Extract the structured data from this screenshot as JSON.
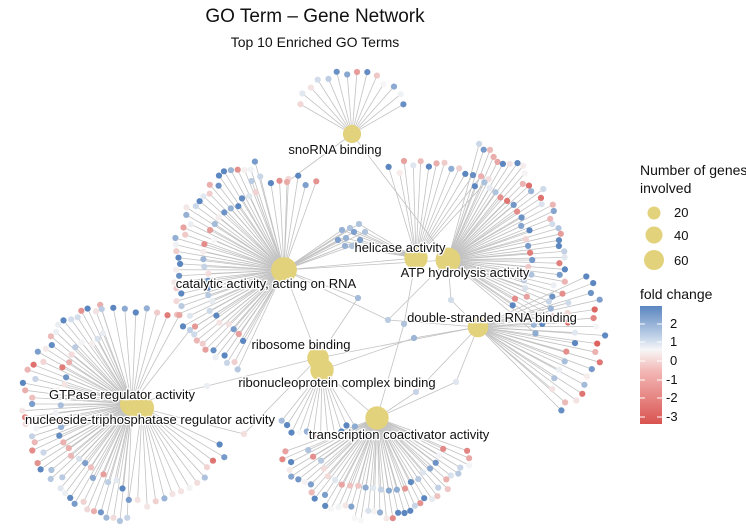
{
  "title": "GO Term – Gene Network",
  "subtitle": "Top 10 Enriched GO Terms",
  "legend": {
    "size_title": "Number of genes involved",
    "size_entries": [
      "20",
      "40",
      "60"
    ],
    "color_title": "fold change",
    "color_ticks": [
      "2",
      "1",
      "0",
      "-1",
      "-2",
      "-3"
    ]
  },
  "colors": {
    "term_node": "#e3d27c",
    "edge": "#bdbdbd",
    "high": "#5b86bf",
    "mid": "#f7f7f7",
    "low": "#d9534f"
  },
  "terms": [
    {
      "id": "snorna",
      "label": "snoRNA binding",
      "genes": 20
    },
    {
      "id": "catalytic",
      "label": "catalytic activity, acting on RNA",
      "genes": 60
    },
    {
      "id": "helicase",
      "label": "helicase activity",
      "genes": 45
    },
    {
      "id": "atp",
      "label": "ATP hydrolysis activity",
      "genes": 55
    },
    {
      "id": "dsrna",
      "label": "double-stranded RNA binding",
      "genes": 30
    },
    {
      "id": "ribosome",
      "label": "ribosome binding",
      "genes": 35
    },
    {
      "id": "rnp",
      "label": "ribonucleoprotein complex binding",
      "genes": 45
    },
    {
      "id": "gtpase",
      "label": "GTPase regulator activity",
      "genes": 50
    },
    {
      "id": "ntpase",
      "label": "nucleoside-triphosphatase regulator activity",
      "genes": 50
    },
    {
      "id": "transcription",
      "label": "transcription coactivator activity",
      "genes": 45
    }
  ]
}
